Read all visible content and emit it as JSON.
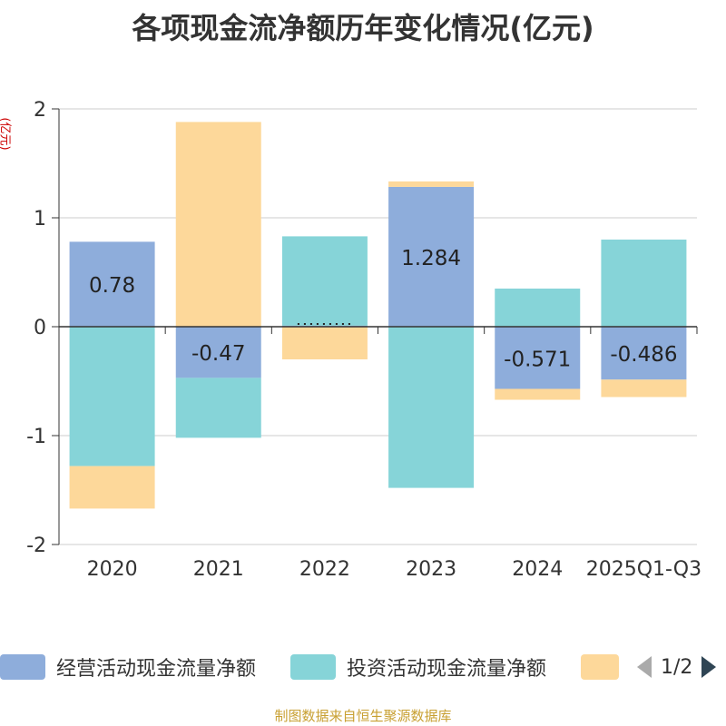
{
  "title": "各项现金流净额历年变化情况(亿元)",
  "y_unit": "(亿元)",
  "source": "制图数据来自恒生聚源数据库",
  "legend": {
    "items": [
      "经营活动现金流量净额",
      "投资活动现金流量净额",
      ""
    ],
    "page": "1/2"
  },
  "colors": {
    "operating": "#8eaddb",
    "investing": "#86d4d8",
    "third": "#fdd89a"
  },
  "chart_data": {
    "type": "bar",
    "stacked": true,
    "title": "各项现金流净额历年变化情况(亿元)",
    "ylabel": "(亿元)",
    "categories": [
      "2020",
      "2021",
      "2022",
      "2023",
      "2024",
      "2025Q1-Q3"
    ],
    "ylim": [
      -2,
      2
    ],
    "yticks": [
      -2,
      -1,
      0,
      1,
      2
    ],
    "grid": true,
    "legend_position": "bottom",
    "series": [
      {
        "name": "经营活动现金流量净额",
        "values": [
          0.78,
          -0.47,
          0.01,
          1.284,
          -0.571,
          -0.486
        ]
      },
      {
        "name": "投资活动现金流量净额",
        "values": [
          -1.28,
          -0.55,
          0.82,
          -1.48,
          0.35,
          0.8
        ]
      },
      {
        "name": "",
        "values": [
          -0.39,
          1.88,
          -0.3,
          0.05,
          -0.1,
          -0.16
        ]
      }
    ],
    "data_labels": [
      "0.78",
      "-0.47",
      "",
      "1.284",
      "-0.571",
      "-0.486"
    ]
  }
}
